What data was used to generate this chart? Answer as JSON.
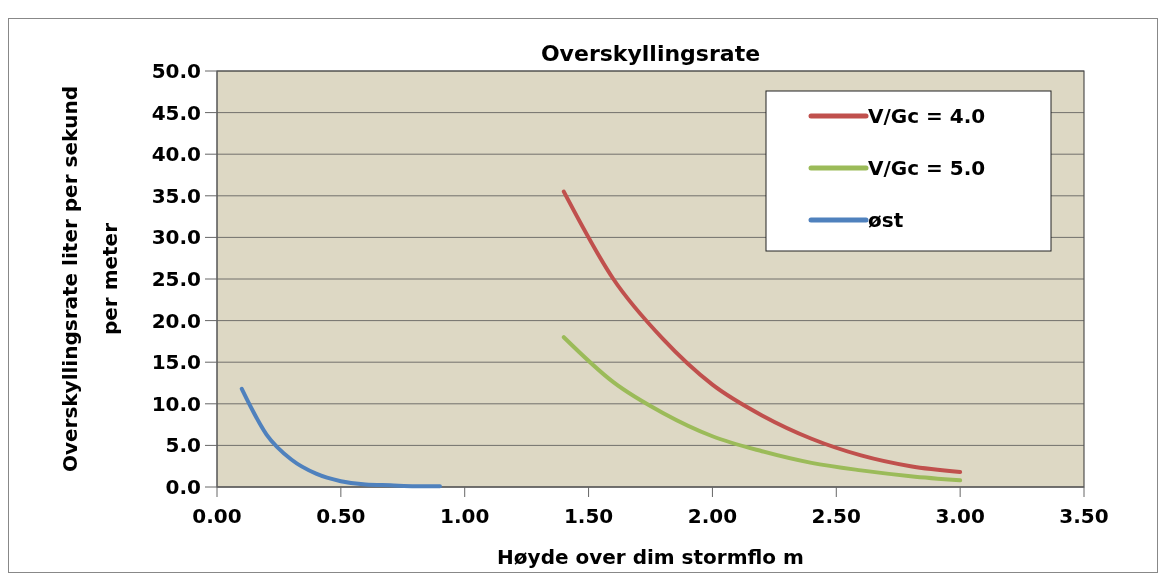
{
  "chart_data": {
    "type": "line",
    "title": "Overskyllingsrate",
    "xlabel": "Høyde over dim stormflo m",
    "ylabel": "Overskyllingsrate liter per sekund per meter",
    "xlim": [
      0,
      3.5
    ],
    "xticks": [
      {
        "value": 0,
        "label": "0.00"
      },
      {
        "value": 0.5,
        "label": "0.50"
      },
      {
        "value": 1,
        "label": "1.00"
      },
      {
        "value": 1.5,
        "label": "1.50"
      },
      {
        "value": 2,
        "label": "2.00"
      },
      {
        "value": 2.5,
        "label": "2.50"
      },
      {
        "value": 3,
        "label": "3.00"
      },
      {
        "value": 3.5,
        "label": "3.50"
      }
    ],
    "ylim": [
      0,
      50
    ],
    "yticks": [
      {
        "value": 0,
        "label": "0.0"
      },
      {
        "value": 5,
        "label": "5.0"
      },
      {
        "value": 10,
        "label": "10.0"
      },
      {
        "value": 15,
        "label": "15.0"
      },
      {
        "value": 20,
        "label": "20.0"
      },
      {
        "value": 25,
        "label": "25.0"
      },
      {
        "value": 30,
        "label": "30.0"
      },
      {
        "value": 35,
        "label": "35.0"
      },
      {
        "value": 40,
        "label": "40.0"
      },
      {
        "value": 45,
        "label": "45.0"
      },
      {
        "value": 50,
        "label": "50.0"
      }
    ],
    "grid": "y",
    "legend": "top right",
    "marker": "none",
    "line_style": "solid",
    "series": [
      {
        "name": "V/Gc = 4.0",
        "color": "#c0504d",
        "x": [
          1.4,
          1.6,
          1.8,
          2.0,
          2.2,
          2.4,
          2.6,
          2.8,
          3.0
        ],
        "values": [
          35.5,
          25,
          17.8,
          12.3,
          8.6,
          5.8,
          3.8,
          2.5,
          1.8
        ]
      },
      {
        "name": "V/Gc = 5.0",
        "color": "#9bbb59",
        "x": [
          1.4,
          1.6,
          1.8,
          2.0,
          2.2,
          2.4,
          2.6,
          2.8,
          3.0
        ],
        "values": [
          18,
          12.6,
          8.9,
          6.1,
          4.3,
          2.9,
          2.0,
          1.3,
          0.8
        ]
      },
      {
        "name": "øst",
        "color": "#4f81bd",
        "x": [
          0.1,
          0.2,
          0.3,
          0.4,
          0.5,
          0.6,
          0.7,
          0.8,
          0.9
        ],
        "values": [
          11.8,
          6.3,
          3.3,
          1.6,
          0.7,
          0.3,
          0.2,
          0.1,
          0.1
        ]
      }
    ]
  }
}
